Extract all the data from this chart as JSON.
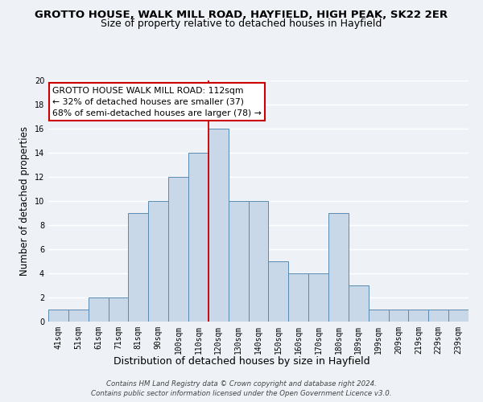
{
  "title": "GROTTO HOUSE, WALK MILL ROAD, HAYFIELD, HIGH PEAK, SK22 2ER",
  "subtitle": "Size of property relative to detached houses in Hayfield",
  "xlabel": "Distribution of detached houses by size in Hayfield",
  "ylabel": "Number of detached properties",
  "bar_labels": [
    "41sqm",
    "51sqm",
    "61sqm",
    "71sqm",
    "81sqm",
    "90sqm",
    "100sqm",
    "110sqm",
    "120sqm",
    "130sqm",
    "140sqm",
    "150sqm",
    "160sqm",
    "170sqm",
    "180sqm",
    "189sqm",
    "199sqm",
    "209sqm",
    "219sqm",
    "229sqm",
    "239sqm"
  ],
  "bar_heights": [
    1,
    1,
    2,
    2,
    9,
    10,
    12,
    14,
    16,
    10,
    10,
    5,
    4,
    4,
    9,
    3,
    1,
    1,
    1,
    1,
    1
  ],
  "bar_color": "#c8d8e8",
  "bar_edge_color": "#5a8ab0",
  "vline_x": 7.5,
  "vline_color": "#cc0000",
  "ylim": [
    0,
    20
  ],
  "yticks": [
    0,
    2,
    4,
    6,
    8,
    10,
    12,
    14,
    16,
    18,
    20
  ],
  "annotation_text": "GROTTO HOUSE WALK MILL ROAD: 112sqm\n← 32% of detached houses are smaller (37)\n68% of semi-detached houses are larger (78) →",
  "annotation_box_color": "#ffffff",
  "annotation_box_edge": "#cc0000",
  "footer1": "Contains HM Land Registry data © Crown copyright and database right 2024.",
  "footer2": "Contains public sector information licensed under the Open Government Licence v3.0.",
  "bg_color": "#eef2f7",
  "grid_color": "#ffffff",
  "title_fontsize": 9.5,
  "subtitle_fontsize": 9,
  "ylabel_fontsize": 8.5,
  "xlabel_fontsize": 9,
  "tick_fontsize": 7,
  "annot_fontsize": 7.8,
  "footer_fontsize": 6.2
}
